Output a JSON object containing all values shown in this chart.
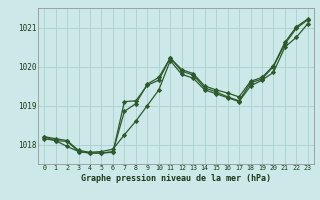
{
  "title": "Graphe pression niveau de la mer (hPa)",
  "background_color": "#cce8e8",
  "grid_color": "#aad0d0",
  "line_color": "#2d5a2d",
  "x_ticks": [
    0,
    1,
    2,
    3,
    4,
    5,
    6,
    7,
    8,
    9,
    10,
    11,
    12,
    13,
    14,
    15,
    16,
    17,
    18,
    19,
    20,
    21,
    22,
    23
  ],
  "ylim": [
    1017.5,
    1021.5
  ],
  "yticks": [
    1018,
    1019,
    1020,
    1021
  ],
  "series1": [
    1018.2,
    1018.15,
    1018.1,
    1017.85,
    1017.8,
    1017.82,
    1017.88,
    1018.25,
    1018.6,
    1019.0,
    1019.4,
    1020.15,
    1019.8,
    1019.7,
    1019.4,
    1019.3,
    1019.2,
    1019.1,
    1019.5,
    1019.65,
    1019.85,
    1020.5,
    1020.75,
    1021.1
  ],
  "series2": [
    1018.15,
    1018.1,
    1017.95,
    1017.82,
    1017.78,
    1017.78,
    1017.82,
    1018.85,
    1019.05,
    1019.55,
    1019.72,
    1020.22,
    1019.92,
    1019.82,
    1019.5,
    1019.4,
    1019.32,
    1019.22,
    1019.62,
    1019.72,
    1020.02,
    1020.62,
    1021.02,
    1021.22
  ],
  "series3": [
    1018.2,
    1018.1,
    1018.08,
    1017.82,
    1017.78,
    1017.78,
    1017.8,
    1019.1,
    1019.12,
    1019.52,
    1019.65,
    1020.22,
    1019.88,
    1019.78,
    1019.45,
    1019.35,
    1019.22,
    1019.12,
    1019.58,
    1019.68,
    1020.0,
    1020.58,
    1020.98,
    1021.2
  ]
}
